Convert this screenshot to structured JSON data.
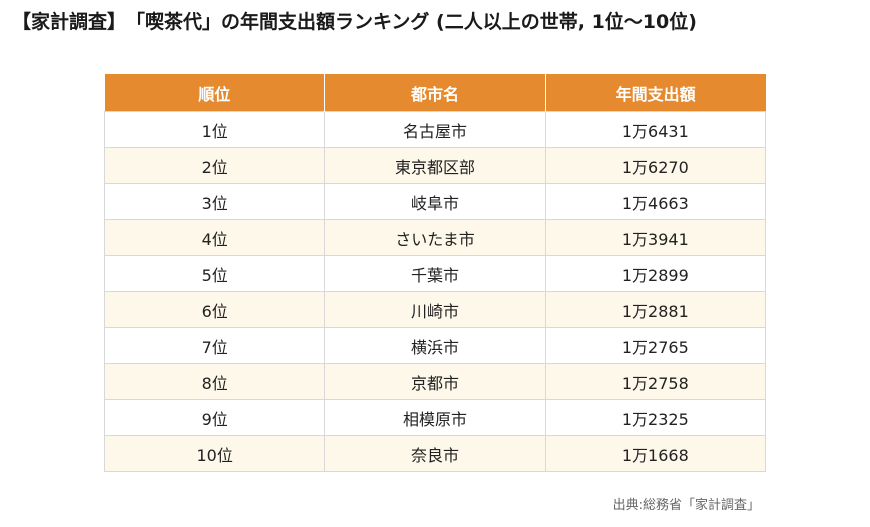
{
  "title": "【家計調査】　「喫茶代」の年間支出額ランキング (二人以上の世帯, 1位〜10位)",
  "table": {
    "headers": [
      "順位",
      "都市名",
      "年間支出額"
    ],
    "rows": [
      {
        "rank": "1位",
        "city": "名古屋市",
        "amount": "1万6431"
      },
      {
        "rank": "2位",
        "city": "東京都区部",
        "amount": "1万6270"
      },
      {
        "rank": "3位",
        "city": "岐阜市",
        "amount": "1万4663"
      },
      {
        "rank": "4位",
        "city": "さいたま市",
        "amount": "1万3941"
      },
      {
        "rank": "5位",
        "city": "千葉市",
        "amount": "1万2899"
      },
      {
        "rank": "6位",
        "city": "川崎市",
        "amount": "1万2881"
      },
      {
        "rank": "7位",
        "city": "横浜市",
        "amount": "1万2765"
      },
      {
        "rank": "8位",
        "city": "京都市",
        "amount": "1万2758"
      },
      {
        "rank": "9位",
        "city": "相模原市",
        "amount": "1万2325"
      },
      {
        "rank": "10位",
        "city": "奈良市",
        "amount": "1万1668"
      }
    ]
  },
  "source": "出典:総務省「家計調査」",
  "colors": {
    "header_bg": "#e58a2e",
    "row_alt_bg": "#fdf8ea"
  }
}
